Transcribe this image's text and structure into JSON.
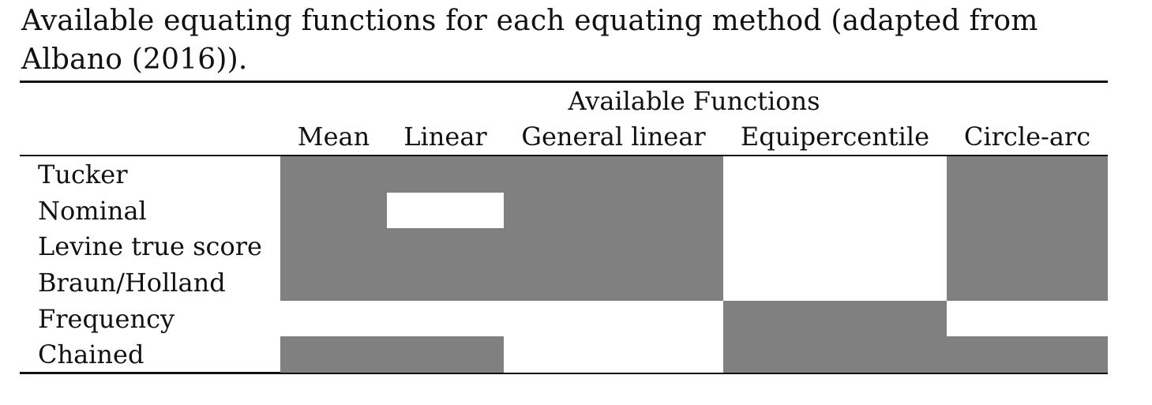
{
  "caption": "Available equating functions for each equating method (adapted from Albano (2016)).",
  "table": {
    "group_header": "Available Functions",
    "columns": [
      "Mean",
      "Linear",
      "General linear",
      "Equipercentile",
      "Circle-arc"
    ],
    "rows": [
      {
        "method": "Tucker",
        "available": [
          true,
          true,
          true,
          false,
          true
        ]
      },
      {
        "method": "Nominal",
        "available": [
          true,
          false,
          true,
          false,
          true
        ]
      },
      {
        "method": "Levine true score",
        "available": [
          true,
          true,
          true,
          false,
          true
        ]
      },
      {
        "method": "Braun/Holland",
        "available": [
          true,
          true,
          true,
          false,
          true
        ]
      },
      {
        "method": "Frequency",
        "available": [
          false,
          false,
          false,
          true,
          false
        ]
      },
      {
        "method": "Chained",
        "available": [
          true,
          true,
          false,
          true,
          true
        ]
      }
    ],
    "filled_color": "#808080",
    "empty_color": "#ffffff"
  }
}
